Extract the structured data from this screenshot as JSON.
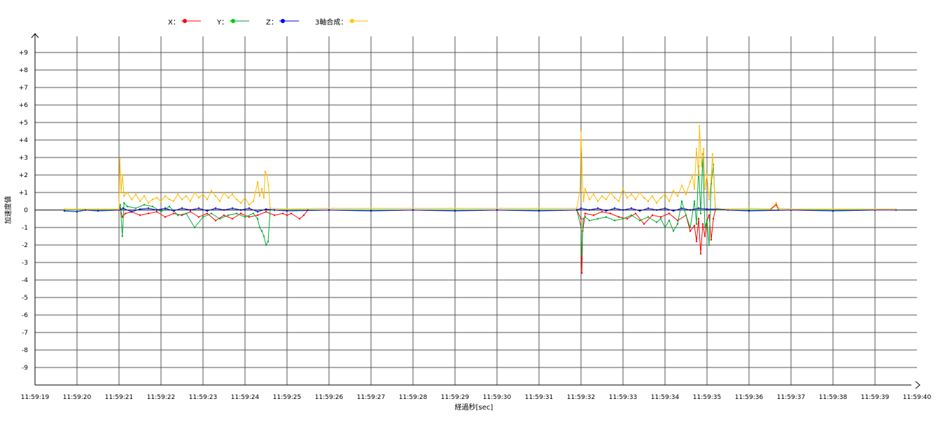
{
  "legend": [
    {
      "label": "X：",
      "color": "#ff0000"
    },
    {
      "label": "Y：",
      "color": "#00cc00"
    },
    {
      "label": "Z：",
      "color": "#0000ff"
    },
    {
      "label": "3軸合成：",
      "color": "#ffcc00"
    }
  ],
  "chart_data": {
    "type": "line",
    "xlabel": "経過秒[sec]",
    "ylabel": "加速度値",
    "xlim": [
      0,
      21
    ],
    "ylim": [
      -10,
      10
    ],
    "x_tick_labels": [
      "11:59:19",
      "11:59:20",
      "11:59:21",
      "11:59:22",
      "11:59:23",
      "11:59:24",
      "11:59:25",
      "11:59:26",
      "11:59:27",
      "11:59:28",
      "11:59:29",
      "11:59:30",
      "11:59:31",
      "11:59:32",
      "11:59:33",
      "11:59:34",
      "11:59:35",
      "11:59:36",
      "11:59:37",
      "11:59:38",
      "11:59:39",
      "11:59:40"
    ],
    "y_tick_labels": [
      "+9",
      "+8",
      "+7",
      "+6",
      "+5",
      "+4",
      "+3",
      "+2",
      "+1",
      "0",
      "-1",
      "-2",
      "-3",
      "-4",
      "-5",
      "-6",
      "-7",
      "-8",
      "-9"
    ],
    "grid": true,
    "legend_position": "top-left",
    "series": [
      {
        "name": "X",
        "color": "#ff0000",
        "points": [
          [
            0.7,
            0
          ],
          [
            1.0,
            0
          ],
          [
            1.5,
            0
          ],
          [
            2.0,
            0
          ],
          [
            2.03,
            0.1
          ],
          [
            2.08,
            -0.4
          ],
          [
            2.15,
            -0.2
          ],
          [
            2.3,
            -0.1
          ],
          [
            2.5,
            -0.3
          ],
          [
            2.7,
            -0.2
          ],
          [
            2.9,
            -0.1
          ],
          [
            3.1,
            -0.4
          ],
          [
            3.3,
            -0.2
          ],
          [
            3.5,
            -0.3
          ],
          [
            3.7,
            -0.1
          ],
          [
            3.9,
            -0.4
          ],
          [
            4.1,
            -0.2
          ],
          [
            4.3,
            -0.6
          ],
          [
            4.5,
            -0.3
          ],
          [
            4.7,
            -0.5
          ],
          [
            4.9,
            -0.2
          ],
          [
            5.1,
            -0.4
          ],
          [
            5.3,
            -0.3
          ],
          [
            5.5,
            -0.1
          ],
          [
            5.7,
            -0.3
          ],
          [
            5.9,
            -0.2
          ],
          [
            6.0,
            -0.3
          ],
          [
            6.1,
            -0.2
          ],
          [
            6.3,
            -0.5
          ],
          [
            6.4,
            -0.3
          ],
          [
            6.5,
            0
          ],
          [
            7,
            0
          ],
          [
            8,
            0
          ],
          [
            9,
            0
          ],
          [
            10,
            0
          ],
          [
            11,
            0
          ],
          [
            12,
            0
          ],
          [
            12.9,
            0
          ],
          [
            13.0,
            -0.5
          ],
          [
            13.02,
            -3.6
          ],
          [
            13.04,
            -1.2
          ],
          [
            13.1,
            -0.2
          ],
          [
            13.3,
            -0.3
          ],
          [
            13.5,
            -0.1
          ],
          [
            13.7,
            -0.2
          ],
          [
            13.9,
            -0.4
          ],
          [
            14.1,
            -0.5
          ],
          [
            14.3,
            -0.2
          ],
          [
            14.5,
            -0.8
          ],
          [
            14.7,
            -0.3
          ],
          [
            14.9,
            -0.4
          ],
          [
            15.1,
            -0.2
          ],
          [
            15.3,
            -0.6
          ],
          [
            15.5,
            -0.3
          ],
          [
            15.6,
            -1.2
          ],
          [
            15.7,
            -0.9
          ],
          [
            15.75,
            -1.8
          ],
          [
            15.8,
            -0.5
          ],
          [
            15.85,
            -2.5
          ],
          [
            15.9,
            -0.8
          ],
          [
            15.95,
            -1.5
          ],
          [
            16.0,
            -0.6
          ],
          [
            16.05,
            -0.3
          ],
          [
            16.1,
            -1.7
          ],
          [
            16.15,
            -0.5
          ],
          [
            16.2,
            0
          ],
          [
            16.5,
            0
          ],
          [
            17,
            0
          ],
          [
            17.5,
            0
          ],
          [
            17.65,
            0.3
          ],
          [
            17.7,
            0
          ],
          [
            18,
            0
          ],
          [
            19,
            0
          ],
          [
            20,
            0
          ],
          [
            20.5,
            0
          ]
        ]
      },
      {
        "name": "Y",
        "color": "#00aa33",
        "points": [
          [
            0.7,
            0
          ],
          [
            1.0,
            0
          ],
          [
            1.5,
            0
          ],
          [
            2.0,
            0
          ],
          [
            2.03,
            0.3
          ],
          [
            2.08,
            -1.5
          ],
          [
            2.12,
            0.4
          ],
          [
            2.2,
            0.2
          ],
          [
            2.4,
            0.1
          ],
          [
            2.6,
            0.3
          ],
          [
            2.8,
            0.2
          ],
          [
            3.0,
            -0.1
          ],
          [
            3.2,
            0.2
          ],
          [
            3.4,
            -0.3
          ],
          [
            3.6,
            -0.2
          ],
          [
            3.8,
            -1.0
          ],
          [
            4.0,
            -0.4
          ],
          [
            4.2,
            -0.2
          ],
          [
            4.4,
            -0.5
          ],
          [
            4.6,
            -0.3
          ],
          [
            4.8,
            -0.2
          ],
          [
            5.0,
            -0.4
          ],
          [
            5.2,
            -0.2
          ],
          [
            5.3,
            -0.5
          ],
          [
            5.35,
            -1.0
          ],
          [
            5.4,
            -1.2
          ],
          [
            5.45,
            -1.5
          ],
          [
            5.5,
            -2.0
          ],
          [
            5.55,
            -1.8
          ],
          [
            5.6,
            0
          ],
          [
            6,
            0
          ],
          [
            7,
            0
          ],
          [
            8,
            0
          ],
          [
            9,
            0
          ],
          [
            10,
            0
          ],
          [
            11,
            0
          ],
          [
            12,
            0
          ],
          [
            12.9,
            0
          ],
          [
            13.0,
            -1.0
          ],
          [
            13.02,
            -2.6
          ],
          [
            13.05,
            -0.5
          ],
          [
            13.1,
            -0.4
          ],
          [
            13.2,
            -0.6
          ],
          [
            13.4,
            -0.5
          ],
          [
            13.6,
            -0.4
          ],
          [
            13.8,
            -0.6
          ],
          [
            14.0,
            -0.5
          ],
          [
            14.2,
            -0.3
          ],
          [
            14.4,
            -0.6
          ],
          [
            14.6,
            -0.4
          ],
          [
            14.8,
            -0.7
          ],
          [
            14.9,
            -0.5
          ],
          [
            15.0,
            -1.0
          ],
          [
            15.1,
            -0.6
          ],
          [
            15.2,
            -1.2
          ],
          [
            15.3,
            -0.8
          ],
          [
            15.4,
            0.5
          ],
          [
            15.5,
            -0.3
          ],
          [
            15.6,
            -1.0
          ],
          [
            15.7,
            0.5
          ],
          [
            15.75,
            -0.8
          ],
          [
            15.8,
            2.5
          ],
          [
            15.85,
            -0.2
          ],
          [
            15.9,
            3.2
          ],
          [
            15.95,
            -1.0
          ],
          [
            16.0,
            -0.6
          ],
          [
            16.05,
            -2.0
          ],
          [
            16.1,
            1.5
          ],
          [
            16.15,
            2.6
          ],
          [
            16.2,
            0
          ],
          [
            16.5,
            0
          ],
          [
            17,
            0
          ],
          [
            18,
            0
          ],
          [
            19,
            0
          ],
          [
            20,
            0
          ],
          [
            20.5,
            0
          ]
        ]
      },
      {
        "name": "Z",
        "color": "#0000cc",
        "points": [
          [
            0.7,
            -0.05
          ],
          [
            1.0,
            -0.1
          ],
          [
            1.2,
            0
          ],
          [
            1.5,
            -0.05
          ],
          [
            2.0,
            0
          ],
          [
            2.1,
            0.1
          ],
          [
            2.3,
            -0.1
          ],
          [
            2.5,
            0.05
          ],
          [
            2.7,
            0.1
          ],
          [
            2.9,
            0
          ],
          [
            3.1,
            0.1
          ],
          [
            3.3,
            -0.05
          ],
          [
            3.5,
            0.1
          ],
          [
            3.7,
            0
          ],
          [
            3.9,
            0.1
          ],
          [
            4.1,
            -0.05
          ],
          [
            4.3,
            0.1
          ],
          [
            4.5,
            0
          ],
          [
            4.7,
            0.1
          ],
          [
            4.9,
            0
          ],
          [
            5.1,
            0.1
          ],
          [
            5.3,
            -0.1
          ],
          [
            5.5,
            0.05
          ],
          [
            5.7,
            0
          ],
          [
            6,
            -0.05
          ],
          [
            7,
            0
          ],
          [
            8,
            -0.05
          ],
          [
            9,
            0
          ],
          [
            10,
            -0.05
          ],
          [
            11,
            0
          ],
          [
            12,
            -0.05
          ],
          [
            12.9,
            0
          ],
          [
            13.0,
            0.1
          ],
          [
            13.2,
            0
          ],
          [
            13.4,
            0.1
          ],
          [
            13.6,
            -0.05
          ],
          [
            13.8,
            0.1
          ],
          [
            14.0,
            0
          ],
          [
            14.2,
            0.1
          ],
          [
            14.4,
            -0.05
          ],
          [
            14.6,
            0.1
          ],
          [
            14.8,
            0
          ],
          [
            15.0,
            0.1
          ],
          [
            15.2,
            -0.05
          ],
          [
            15.4,
            0.1
          ],
          [
            15.6,
            0
          ],
          [
            15.8,
            0.1
          ],
          [
            16.0,
            0.05
          ],
          [
            16.2,
            0.05
          ],
          [
            16.5,
            0
          ],
          [
            17,
            -0.05
          ],
          [
            18,
            0
          ],
          [
            19,
            -0.05
          ],
          [
            20,
            0
          ],
          [
            20.5,
            0
          ]
        ]
      },
      {
        "name": "3軸合成",
        "color": "#ffbb00",
        "points": [
          [
            0.7,
            0.05
          ],
          [
            1.0,
            0.05
          ],
          [
            1.5,
            0.05
          ],
          [
            2.0,
            0.05
          ],
          [
            2.02,
            2.9
          ],
          [
            2.05,
            1.0
          ],
          [
            2.08,
            2.0
          ],
          [
            2.12,
            0.8
          ],
          [
            2.2,
            1.0
          ],
          [
            2.3,
            0.6
          ],
          [
            2.4,
            0.9
          ],
          [
            2.5,
            0.5
          ],
          [
            2.6,
            0.8
          ],
          [
            2.7,
            0.4
          ],
          [
            2.8,
            0.6
          ],
          [
            2.9,
            0.7
          ],
          [
            3.0,
            0.5
          ],
          [
            3.1,
            0.8
          ],
          [
            3.2,
            0.6
          ],
          [
            3.3,
            0.5
          ],
          [
            3.4,
            0.9
          ],
          [
            3.5,
            0.6
          ],
          [
            3.6,
            0.8
          ],
          [
            3.7,
            0.5
          ],
          [
            3.8,
            1.0
          ],
          [
            3.9,
            0.7
          ],
          [
            4.0,
            0.9
          ],
          [
            4.1,
            0.6
          ],
          [
            4.2,
            1.1
          ],
          [
            4.3,
            0.8
          ],
          [
            4.4,
            0.5
          ],
          [
            4.5,
            1.0
          ],
          [
            4.6,
            0.7
          ],
          [
            4.7,
            0.9
          ],
          [
            4.8,
            0.6
          ],
          [
            4.9,
            0.4
          ],
          [
            5.0,
            0.7
          ],
          [
            5.1,
            0.3
          ],
          [
            5.2,
            0.5
          ],
          [
            5.25,
            1.0
          ],
          [
            5.3,
            1.6
          ],
          [
            5.35,
            0.8
          ],
          [
            5.4,
            1.2
          ],
          [
            5.45,
            0.7
          ],
          [
            5.48,
            2.2
          ],
          [
            5.52,
            2.0
          ],
          [
            5.56,
            1.4
          ],
          [
            5.6,
            0.1
          ],
          [
            6,
            0.05
          ],
          [
            7,
            0.1
          ],
          [
            8,
            0.1
          ],
          [
            9,
            0.1
          ],
          [
            10,
            0.1
          ],
          [
            11,
            0.1
          ],
          [
            12,
            0.1
          ],
          [
            12.9,
            0.1
          ],
          [
            12.98,
            1.2
          ],
          [
            13.0,
            4.5
          ],
          [
            13.03,
            2.0
          ],
          [
            13.06,
            0.5
          ],
          [
            13.1,
            1.2
          ],
          [
            13.2,
            0.6
          ],
          [
            13.3,
            0.9
          ],
          [
            13.4,
            0.5
          ],
          [
            13.5,
            0.8
          ],
          [
            13.6,
            0.6
          ],
          [
            13.7,
            1.0
          ],
          [
            13.8,
            0.7
          ],
          [
            13.9,
            0.5
          ],
          [
            14.0,
            1.2
          ],
          [
            14.1,
            0.7
          ],
          [
            14.2,
            0.9
          ],
          [
            14.3,
            0.6
          ],
          [
            14.4,
            1.0
          ],
          [
            14.5,
            0.7
          ],
          [
            14.6,
            0.5
          ],
          [
            14.7,
            0.8
          ],
          [
            14.8,
            0.4
          ],
          [
            14.9,
            0.7
          ],
          [
            15.0,
            0.9
          ],
          [
            15.1,
            0.5
          ],
          [
            15.2,
            1.1
          ],
          [
            15.3,
            0.8
          ],
          [
            15.4,
            1.4
          ],
          [
            15.5,
            0.9
          ],
          [
            15.6,
            1.6
          ],
          [
            15.65,
            2.0
          ],
          [
            15.7,
            1.2
          ],
          [
            15.75,
            3.5
          ],
          [
            15.8,
            2.0
          ],
          [
            15.82,
            4.8
          ],
          [
            15.87,
            2.5
          ],
          [
            15.92,
            3.5
          ],
          [
            15.95,
            1.2
          ],
          [
            16.0,
            2.0
          ],
          [
            16.05,
            0.6
          ],
          [
            16.1,
            1.8
          ],
          [
            16.13,
            3.2
          ],
          [
            16.18,
            1.0
          ],
          [
            16.2,
            0.1
          ],
          [
            16.5,
            0.05
          ],
          [
            17,
            0.1
          ],
          [
            17.5,
            0.05
          ],
          [
            17.65,
            0.4
          ],
          [
            17.7,
            0.1
          ],
          [
            18,
            0.05
          ],
          [
            19,
            0.05
          ],
          [
            20,
            0.05
          ],
          [
            20.5,
            0.05
          ]
        ]
      }
    ]
  }
}
